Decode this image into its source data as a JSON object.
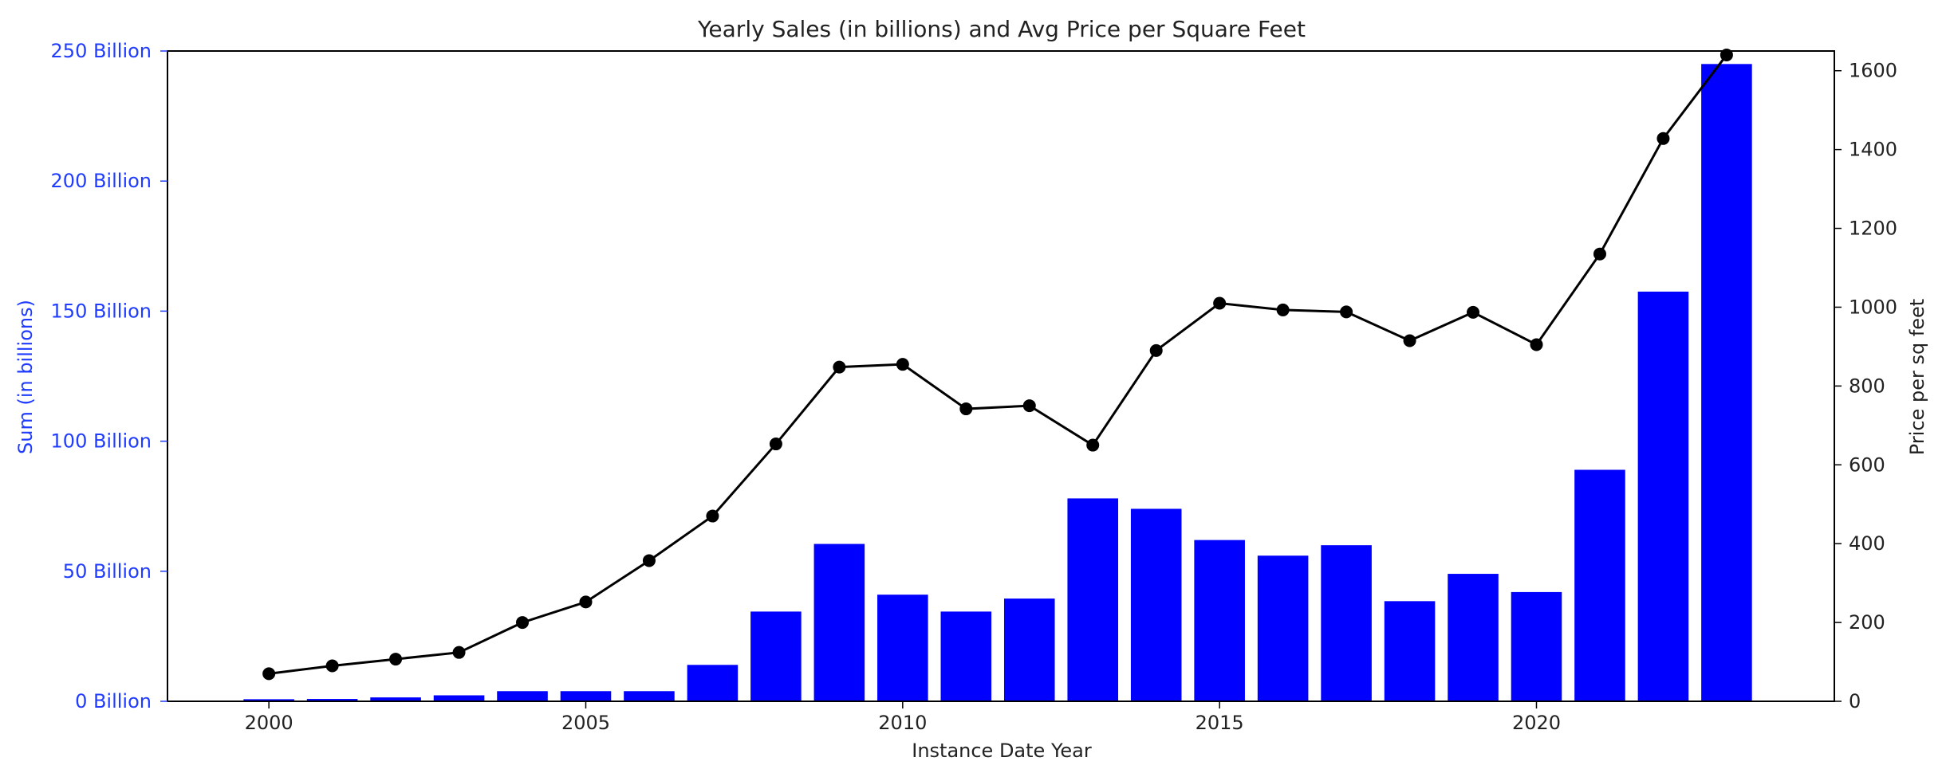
{
  "chart_data": {
    "type": "bar",
    "title": "Yearly Sales (in billions) and Avg Price per Square Feet",
    "xlabel": "Instance Date Year",
    "ylabel_left": "Sum (in billions)",
    "ylabel_right": "Price per sq feet",
    "xlim": [
      1998.4,
      2024.7
    ],
    "ylim_left": [
      0,
      250
    ],
    "ylim_right": [
      0,
      1650
    ],
    "x_ticks": [
      2000,
      2005,
      2010,
      2015,
      2020
    ],
    "y_left_ticks": [
      0,
      50,
      100,
      150,
      200,
      250
    ],
    "y_left_tick_labels": [
      "0 Billion",
      "50 Billion",
      "100 Billion",
      "150 Billion",
      "200 Billion",
      "250 Billion"
    ],
    "y_right_ticks": [
      0,
      200,
      400,
      600,
      800,
      1000,
      1200,
      1400,
      1600
    ],
    "y_right_tick_labels": [
      "0",
      "200",
      "400",
      "600",
      "800",
      "1000",
      "1200",
      "1400",
      "1600"
    ],
    "colors": {
      "bars": "#0000ff",
      "line": "#000000",
      "left_axis": "#1f3cff",
      "text": "#222222"
    },
    "legend": "none",
    "grid": false,
    "x": [
      2000,
      2001,
      2002,
      2003,
      2004,
      2005,
      2006,
      2007,
      2008,
      2009,
      2010,
      2011,
      2012,
      2013,
      2014,
      2015,
      2016,
      2017,
      2018,
      2019,
      2020,
      2021,
      2022,
      2023
    ],
    "series": [
      {
        "type": "bar",
        "axis": "left",
        "values": [
          0.8,
          0.9,
          1.5,
          2.3,
          3.9,
          3.9,
          3.9,
          14,
          34.5,
          60.5,
          41,
          34.5,
          39.5,
          78,
          74,
          62,
          56,
          60,
          38.5,
          49,
          42,
          89,
          157.5,
          245
        ]
      },
      {
        "type": "line",
        "axis": "right",
        "values": [
          70,
          90,
          107,
          124,
          200,
          252,
          357,
          470,
          653,
          848,
          855,
          742,
          750,
          650,
          890,
          1010,
          993,
          988,
          915,
          987,
          905,
          1135,
          1428,
          1640
        ]
      }
    ]
  }
}
